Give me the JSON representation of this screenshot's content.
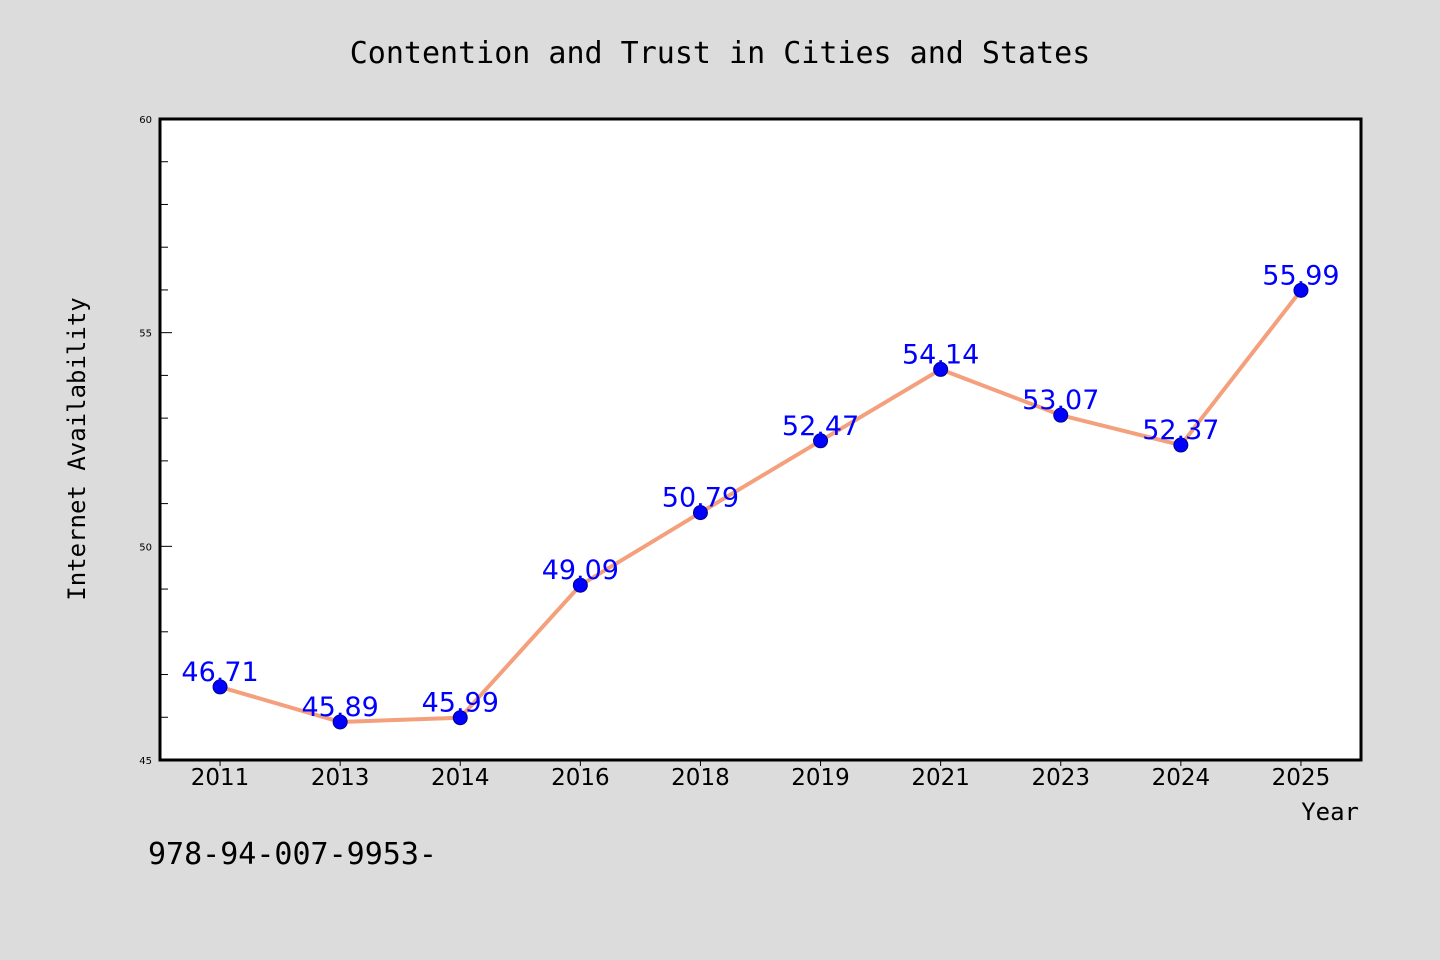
{
  "chart_data": {
    "type": "line",
    "title": "Contention and Trust in Cities and States",
    "xlabel": "Year",
    "ylabel": "Internet Availability",
    "categories": [
      "2011",
      "2013",
      "2014",
      "2016",
      "2018",
      "2019",
      "2021",
      "2023",
      "2024",
      "2025"
    ],
    "series": [
      {
        "values": [
          46.71,
          45.89,
          45.99,
          49.09,
          50.79,
          52.47,
          54.14,
          53.07,
          52.37,
          55.99
        ],
        "data_labels": [
          "46.71",
          "45.89",
          "45.99",
          "49.09",
          "50.79",
          "52.47",
          "54.14",
          "53.07",
          "52.37",
          "55.99"
        ],
        "line_color": "#f4a07c",
        "marker_color": "#0000ff"
      }
    ],
    "ylim": [
      45,
      60
    ],
    "y_ticks": [
      "45",
      "50",
      "55",
      "60"
    ],
    "grid": false,
    "legend": "none",
    "footnote": "978-94-007-9953-"
  },
  "colors": {
    "background": "#dcdcdc",
    "plot_background": "#ffffff",
    "line": "#f4a07c",
    "marker": "#0000ff",
    "data_label": "#0000ff"
  }
}
